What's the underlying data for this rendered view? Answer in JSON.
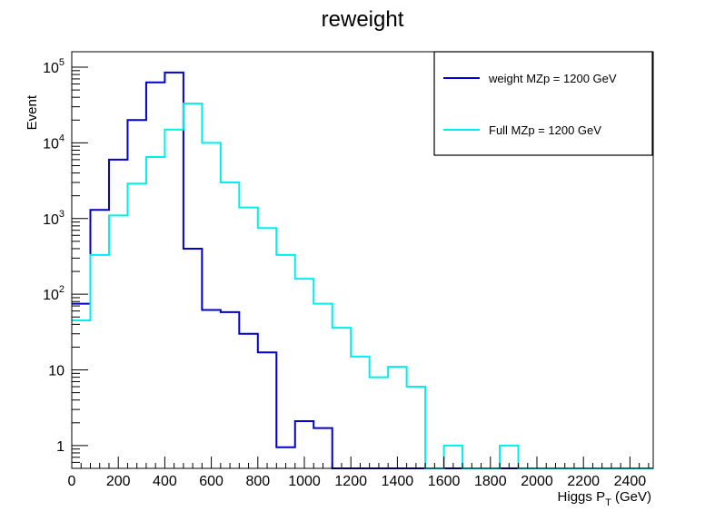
{
  "chart_data": {
    "type": "line",
    "title": "reweight",
    "xlabel_main": "Higgs P",
    "xlabel_sub": "T",
    "xlabel_unit": " (GeV)",
    "ylabel": "Event",
    "xlim": [
      0,
      2500
    ],
    "ylim": [
      0.5,
      160000
    ],
    "yscale": "log",
    "grid": false,
    "legend_position": "top-right",
    "x_ticks": [
      "0",
      "200",
      "400",
      "600",
      "800",
      "1000",
      "1200",
      "1400",
      "1600",
      "1800",
      "2000",
      "2200",
      "2400"
    ],
    "y_ticks": [
      {
        "base": "1",
        "exp": ""
      },
      {
        "base": "10",
        "exp": ""
      },
      {
        "base": "10",
        "exp": "2"
      },
      {
        "base": "10",
        "exp": "3"
      },
      {
        "base": "10",
        "exp": "4"
      },
      {
        "base": "10",
        "exp": "5"
      }
    ],
    "bin_edges": [
      0,
      80,
      160,
      240,
      320,
      400,
      480,
      560,
      640,
      720,
      800,
      880,
      960,
      1040,
      1120,
      1200,
      1280,
      1360,
      1440,
      1520,
      1600,
      1680,
      1760,
      1840,
      1920,
      2000,
      2080,
      2160,
      2240,
      2320,
      2400,
      2500
    ],
    "series": [
      {
        "name": "weight MZp = 1200 GeV",
        "color": "#0000cc",
        "values": [
          75,
          1300,
          6000,
          20000,
          63000,
          85000,
          400,
          62,
          58,
          30,
          17,
          0.95,
          2.1,
          1.7,
          0,
          0,
          0,
          0,
          0,
          0,
          0,
          0,
          0,
          0,
          0,
          0,
          0,
          0,
          0,
          0,
          0
        ]
      },
      {
        "name": "Full MZp = 1200 GeV",
        "color": "#00eeee",
        "values": [
          45,
          330,
          1100,
          2900,
          6500,
          15000,
          33000,
          10000,
          3000,
          1400,
          750,
          330,
          160,
          75,
          36,
          15,
          8,
          11,
          6,
          0,
          1,
          0,
          0,
          1,
          0,
          0,
          0,
          0,
          0,
          0,
          0
        ]
      }
    ]
  }
}
